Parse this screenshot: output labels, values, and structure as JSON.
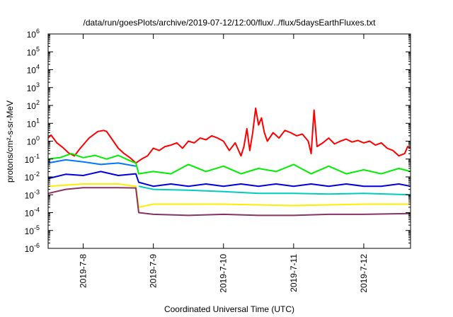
{
  "chart_data": {
    "type": "line",
    "title": "/data/run/goesPlots/archive/2019-07-12/12:00/flux/../flux/5daysEarthFluxes.txt",
    "xlabel": "Coordinated Universal Time (UTC)",
    "ylabel": "protons/cm²-s-sr-MeV",
    "y_scale": "log",
    "ylim": [
      1e-06,
      1000000.0
    ],
    "y_ticks": [
      {
        "value": 1e-06,
        "base": "10",
        "exp": "-6"
      },
      {
        "value": 1e-05,
        "base": "10",
        "exp": "-5"
      },
      {
        "value": 0.0001,
        "base": "10",
        "exp": "-4"
      },
      {
        "value": 0.001,
        "base": "10",
        "exp": "-3"
      },
      {
        "value": 0.01,
        "base": "10",
        "exp": "-2"
      },
      {
        "value": 0.1,
        "base": "10",
        "exp": "-1"
      },
      {
        "value": 1.0,
        "base": "10",
        "exp": "0"
      },
      {
        "value": 10.0,
        "base": "10",
        "exp": "1"
      },
      {
        "value": 100.0,
        "base": "10",
        "exp": "2"
      },
      {
        "value": 1000.0,
        "base": "10",
        "exp": "3"
      },
      {
        "value": 10000.0,
        "base": "10",
        "exp": "4"
      },
      {
        "value": 100000.0,
        "base": "10",
        "exp": "5"
      },
      {
        "value": 1000000.0,
        "base": "10",
        "exp": "6"
      }
    ],
    "xlim": [
      "2019-07-07T12:00",
      "2019-07-12T16:00"
    ],
    "x_ticks": [
      {
        "value": "2019-07-08T00:00",
        "label": "2019-7-8"
      },
      {
        "value": "2019-07-09T00:00",
        "label": "2019-7-9"
      },
      {
        "value": "2019-07-10T00:00",
        "label": "2019-7-10"
      },
      {
        "value": "2019-07-11T00:00",
        "label": "2019-7-11"
      },
      {
        "value": "2019-07-12T00:00",
        "label": "2019-7-12"
      }
    ],
    "grid": false,
    "legend": "none",
    "series": [
      {
        "color": "#ff0000",
        "points": [
          [
            "2019-07-07T12:00",
            1.5
          ],
          [
            "2019-07-07T13:00",
            2.2
          ],
          [
            "2019-07-07T15:00",
            0.8
          ],
          [
            "2019-07-07T17:00",
            0.45
          ],
          [
            "2019-07-07T19:00",
            0.22
          ],
          [
            "2019-07-07T21:00",
            0.15
          ],
          [
            "2019-07-07T23:00",
            0.4
          ],
          [
            "2019-07-08T02:00",
            1.5
          ],
          [
            "2019-07-08T05:00",
            3.5
          ],
          [
            "2019-07-08T07:00",
            4.0
          ],
          [
            "2019-07-08T08:00",
            3.5
          ],
          [
            "2019-07-08T10:00",
            1.2
          ],
          [
            "2019-07-08T12:00",
            0.4
          ],
          [
            "2019-07-08T14:00",
            0.2
          ],
          [
            "2019-07-08T16:00",
            0.12
          ],
          [
            "2019-07-08T18:00",
            0.06
          ],
          [
            "2019-07-08T20:00",
            0.1
          ],
          [
            "2019-07-08T22:00",
            0.15
          ],
          [
            "2019-07-09T00:00",
            0.4
          ],
          [
            "2019-07-09T02:00",
            0.3
          ],
          [
            "2019-07-09T04:00",
            0.5
          ],
          [
            "2019-07-09T06:00",
            0.6
          ],
          [
            "2019-07-09T08:00",
            0.8
          ],
          [
            "2019-07-09T10:00",
            0.4
          ],
          [
            "2019-07-09T12:00",
            1.0
          ],
          [
            "2019-07-09T14:00",
            0.8
          ],
          [
            "2019-07-09T16:00",
            1.5
          ],
          [
            "2019-07-09T18:00",
            1.2
          ],
          [
            "2019-07-09T20:00",
            2.0
          ],
          [
            "2019-07-09T22:00",
            1.5
          ],
          [
            "2019-07-10T00:00",
            1.0
          ],
          [
            "2019-07-10T02:00",
            0.3
          ],
          [
            "2019-07-10T04:00",
            0.8
          ],
          [
            "2019-07-10T06:00",
            0.15
          ],
          [
            "2019-07-10T07:00",
            0.5
          ],
          [
            "2019-07-10T08:00",
            5.0
          ],
          [
            "2019-07-10T09:00",
            0.3
          ],
          [
            "2019-07-10T10:00",
            3.0
          ],
          [
            "2019-07-10T11:00",
            70.0
          ],
          [
            "2019-07-10T12:00",
            8.0
          ],
          [
            "2019-07-10T13:00",
            20.0
          ],
          [
            "2019-07-10T14:00",
            3.0
          ],
          [
            "2019-07-10T15:00",
            1.0
          ],
          [
            "2019-07-10T17:00",
            3.0
          ],
          [
            "2019-07-10T19:00",
            1.5
          ],
          [
            "2019-07-10T21:00",
            4.0
          ],
          [
            "2019-07-10T23:00",
            3.0
          ],
          [
            "2019-07-11T01:00",
            2.0
          ],
          [
            "2019-07-11T03:00",
            2.5
          ],
          [
            "2019-07-11T05:00",
            1.0
          ],
          [
            "2019-07-11T06:00",
            0.2
          ],
          [
            "2019-07-11T07:00",
            55.0
          ],
          [
            "2019-07-11T08:00",
            0.5
          ],
          [
            "2019-07-11T10:00",
            0.8
          ],
          [
            "2019-07-11T12:00",
            1.5
          ],
          [
            "2019-07-11T14:00",
            0.7
          ],
          [
            "2019-07-11T16:00",
            1.0
          ],
          [
            "2019-07-11T18:00",
            1.3
          ],
          [
            "2019-07-11T20:00",
            0.9
          ],
          [
            "2019-07-11T22:00",
            1.1
          ],
          [
            "2019-07-12T00:00",
            0.8
          ],
          [
            "2019-07-12T02:00",
            1.0
          ],
          [
            "2019-07-12T04:00",
            0.6
          ],
          [
            "2019-07-12T06:00",
            0.8
          ],
          [
            "2019-07-12T08:00",
            0.4
          ],
          [
            "2019-07-12T10:00",
            0.3
          ],
          [
            "2019-07-12T12:00",
            0.15
          ],
          [
            "2019-07-12T14:00",
            0.2
          ],
          [
            "2019-07-12T15:00",
            0.5
          ],
          [
            "2019-07-12T16:00",
            0.4
          ]
        ]
      },
      {
        "color": "#00ee00",
        "points": [
          [
            "2019-07-07T12:00",
            0.1
          ],
          [
            "2019-07-07T16:00",
            0.12
          ],
          [
            "2019-07-07T20:00",
            0.2
          ],
          [
            "2019-07-08T00:00",
            0.12
          ],
          [
            "2019-07-08T04:00",
            0.16
          ],
          [
            "2019-07-08T08:00",
            0.1
          ],
          [
            "2019-07-08T12:00",
            0.16
          ],
          [
            "2019-07-08T16:00",
            0.08
          ],
          [
            "2019-07-08T18:00",
            0.06
          ],
          [
            "2019-07-08T19:00",
            0.015
          ],
          [
            "2019-07-09T00:00",
            0.02
          ],
          [
            "2019-07-09T06:00",
            0.015
          ],
          [
            "2019-07-09T12:00",
            0.05
          ],
          [
            "2019-07-09T18:00",
            0.02
          ],
          [
            "2019-07-10T00:00",
            0.04
          ],
          [
            "2019-07-10T06:00",
            0.015
          ],
          [
            "2019-07-10T12:00",
            0.03
          ],
          [
            "2019-07-10T18:00",
            0.02
          ],
          [
            "2019-07-11T00:00",
            0.05
          ],
          [
            "2019-07-11T06:00",
            0.015
          ],
          [
            "2019-07-11T12:00",
            0.04
          ],
          [
            "2019-07-11T18:00",
            0.015
          ],
          [
            "2019-07-12T00:00",
            0.025
          ],
          [
            "2019-07-12T06:00",
            0.015
          ],
          [
            "2019-07-12T12:00",
            0.03
          ],
          [
            "2019-07-12T16:00",
            0.02
          ]
        ]
      },
      {
        "color": "#0077ff",
        "points": [
          [
            "2019-07-07T12:00",
            0.06
          ],
          [
            "2019-07-07T18:00",
            0.09
          ],
          [
            "2019-07-08T00:00",
            0.07
          ],
          [
            "2019-07-08T06:00",
            0.05
          ],
          [
            "2019-07-08T12:00",
            0.06
          ],
          [
            "2019-07-08T18:00",
            0.04
          ]
        ]
      },
      {
        "color": "#0000dd",
        "points": [
          [
            "2019-07-07T12:00",
            0.008
          ],
          [
            "2019-07-07T18:00",
            0.014
          ],
          [
            "2019-07-08T00:00",
            0.012
          ],
          [
            "2019-07-08T06:00",
            0.02
          ],
          [
            "2019-07-08T12:00",
            0.012
          ],
          [
            "2019-07-08T18:00",
            0.015
          ],
          [
            "2019-07-08T19:00",
            0.005
          ],
          [
            "2019-07-09T00:00",
            0.003
          ],
          [
            "2019-07-09T06:00",
            0.004
          ],
          [
            "2019-07-09T12:00",
            0.003
          ],
          [
            "2019-07-09T18:00",
            0.004
          ],
          [
            "2019-07-10T00:00",
            0.003
          ],
          [
            "2019-07-10T06:00",
            0.004
          ],
          [
            "2019-07-10T12:00",
            0.003
          ],
          [
            "2019-07-10T18:00",
            0.004
          ],
          [
            "2019-07-11T00:00",
            0.003
          ],
          [
            "2019-07-11T06:00",
            0.004
          ],
          [
            "2019-07-11T12:00",
            0.003
          ],
          [
            "2019-07-11T18:00",
            0.004
          ],
          [
            "2019-07-12T00:00",
            0.003
          ],
          [
            "2019-07-12T06:00",
            0.003
          ],
          [
            "2019-07-12T12:00",
            0.004
          ],
          [
            "2019-07-12T16:00",
            0.003
          ]
        ]
      },
      {
        "color": "#00ccbb",
        "points": [
          [
            "2019-07-08T19:00",
            0.003
          ],
          [
            "2019-07-09T00:00",
            0.002
          ],
          [
            "2019-07-09T12:00",
            0.0018
          ],
          [
            "2019-07-10T00:00",
            0.0015
          ],
          [
            "2019-07-10T12:00",
            0.0012
          ],
          [
            "2019-07-11T00:00",
            0.0012
          ],
          [
            "2019-07-11T12:00",
            0.0011
          ],
          [
            "2019-07-12T00:00",
            0.0012
          ],
          [
            "2019-07-12T16:00",
            0.001
          ]
        ]
      },
      {
        "color": "#ffee00",
        "points": [
          [
            "2019-07-07T12:00",
            0.003
          ],
          [
            "2019-07-08T00:00",
            0.004
          ],
          [
            "2019-07-08T12:00",
            0.004
          ],
          [
            "2019-07-08T18:00",
            0.003
          ],
          [
            "2019-07-08T19:00",
            0.0002
          ],
          [
            "2019-07-09T00:00",
            0.0003
          ],
          [
            "2019-07-10T00:00",
            0.0003
          ],
          [
            "2019-07-11T00:00",
            0.00025
          ],
          [
            "2019-07-12T00:00",
            0.0003
          ],
          [
            "2019-07-12T16:00",
            0.0003
          ]
        ]
      },
      {
        "color": "#883366",
        "points": [
          [
            "2019-07-07T12:00",
            0.0012
          ],
          [
            "2019-07-07T18:00",
            0.002
          ],
          [
            "2019-07-08T00:00",
            0.0025
          ],
          [
            "2019-07-08T06:00",
            0.0025
          ],
          [
            "2019-07-08T12:00",
            0.0025
          ],
          [
            "2019-07-08T18:00",
            0.0024
          ],
          [
            "2019-07-08T19:00",
            0.0001
          ],
          [
            "2019-07-09T00:00",
            8e-05
          ],
          [
            "2019-07-09T12:00",
            7e-05
          ],
          [
            "2019-07-10T00:00",
            8e-05
          ],
          [
            "2019-07-10T12:00",
            7e-05
          ],
          [
            "2019-07-11T00:00",
            7e-05
          ],
          [
            "2019-07-11T12:00",
            8e-05
          ],
          [
            "2019-07-12T00:00",
            8e-05
          ],
          [
            "2019-07-12T16:00",
            9e-05
          ]
        ]
      }
    ]
  }
}
